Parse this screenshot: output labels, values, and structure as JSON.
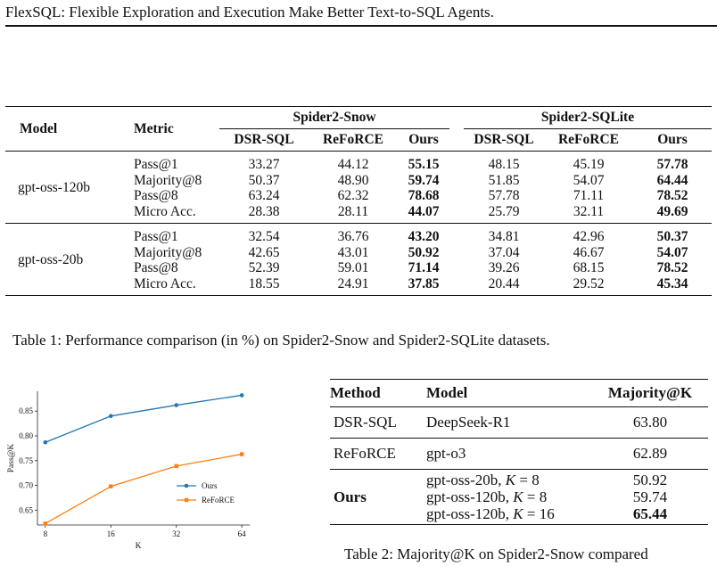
{
  "running_head": "FlexSQL: Flexible Exploration and Execution Make Better Text-to-SQL Agents.",
  "table1": {
    "col_model": "Model",
    "col_metric": "Metric",
    "group_a": "Spider2-Snow",
    "group_b": "Spider2-SQLite",
    "sub_headers": [
      "DSR-SQL",
      "ReFoRCE",
      "Ours",
      "DSR-SQL",
      "ReFoRCE",
      "Ours"
    ],
    "blocks": [
      {
        "model": "gpt-oss-120b",
        "rows": [
          {
            "metric": "Pass@1",
            "vals": [
              "33.27",
              "44.12",
              "55.15",
              "48.15",
              "45.19",
              "57.78"
            ]
          },
          {
            "metric": "Majority@8",
            "vals": [
              "50.37",
              "48.90",
              "59.74",
              "51.85",
              "54.07",
              "64.44"
            ]
          },
          {
            "metric": "Pass@8",
            "vals": [
              "63.24",
              "62.32",
              "78.68",
              "57.78",
              "71.11",
              "78.52"
            ]
          },
          {
            "metric": "Micro Acc.",
            "vals": [
              "28.38",
              "28.11",
              "44.07",
              "25.79",
              "32.11",
              "49.69"
            ]
          }
        ]
      },
      {
        "model": "gpt-oss-20b",
        "rows": [
          {
            "metric": "Pass@1",
            "vals": [
              "32.54",
              "36.76",
              "43.20",
              "34.81",
              "42.96",
              "50.37"
            ]
          },
          {
            "metric": "Majority@8",
            "vals": [
              "42.65",
              "43.01",
              "50.92",
              "37.04",
              "46.67",
              "54.07"
            ]
          },
          {
            "metric": "Pass@8",
            "vals": [
              "52.39",
              "59.01",
              "71.14",
              "39.26",
              "68.15",
              "78.52"
            ]
          },
          {
            "metric": "Micro Acc.",
            "vals": [
              "18.55",
              "24.91",
              "37.85",
              "20.44",
              "29.52",
              "45.34"
            ]
          }
        ]
      }
    ],
    "caption": "Table 1: Performance comparison (in %) on Spider2-Snow and Spider2-SQLite datasets."
  },
  "chart_data": {
    "type": "line",
    "x": [
      8,
      16,
      32,
      64
    ],
    "x_tick_labels": [
      "8",
      "16",
      "32",
      "64"
    ],
    "xscale": "log2",
    "xlabel": "K",
    "ylabel": "Pass@K",
    "ylim": [
      0.62,
      0.89
    ],
    "y_ticks": [
      0.65,
      0.7,
      0.75,
      0.8,
      0.85
    ],
    "y_tick_labels": [
      "0.65",
      "0.70",
      "0.75",
      "0.80",
      "0.85"
    ],
    "legend_position": "lower-right",
    "series": [
      {
        "name": "Ours",
        "color": "#1f77b4",
        "values": [
          0.787,
          0.84,
          0.862,
          0.882
        ]
      },
      {
        "name": "ReFoRCE",
        "color": "#ff7f0e",
        "values": [
          0.623,
          0.698,
          0.739,
          0.763
        ]
      }
    ]
  },
  "table2": {
    "headers": [
      "Method",
      "Model",
      "Majority@K"
    ],
    "rows": [
      {
        "method": "DSR-SQL",
        "model": "DeepSeek-R1",
        "value": "63.80"
      },
      {
        "method": "ReFoRCE",
        "model": "gpt-o3",
        "value": "62.89"
      }
    ],
    "ours": {
      "method": "Ours",
      "entries": [
        {
          "model": "gpt-oss-20b,",
          "k_symbol": "K",
          "k_eq": " = 8",
          "value": "50.92"
        },
        {
          "model": "gpt-oss-120b,",
          "k_symbol": "K",
          "k_eq": " = 8",
          "value": "59.74"
        },
        {
          "model": "gpt-oss-120b,",
          "k_symbol": "K",
          "k_eq": " = 16",
          "value": "65.44"
        }
      ]
    },
    "caption": "Table 2: Majority@K on Spider2-Snow compared"
  }
}
